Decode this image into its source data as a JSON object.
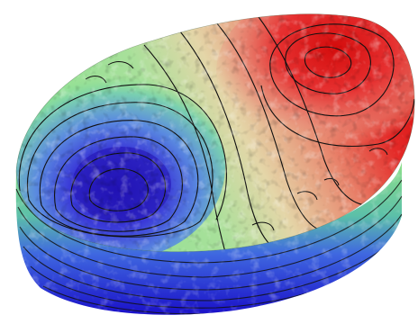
{
  "scene": {
    "subject": "3d-contoured-terrain-surface",
    "colormap": {
      "low": "#1a14c8",
      "low_mid": "#4a6ae0",
      "mid": "#7ee08a",
      "high_mid": "#e8d6a0",
      "high": "#e81818"
    },
    "contour_color": "#111111",
    "background": "#ffffff"
  }
}
